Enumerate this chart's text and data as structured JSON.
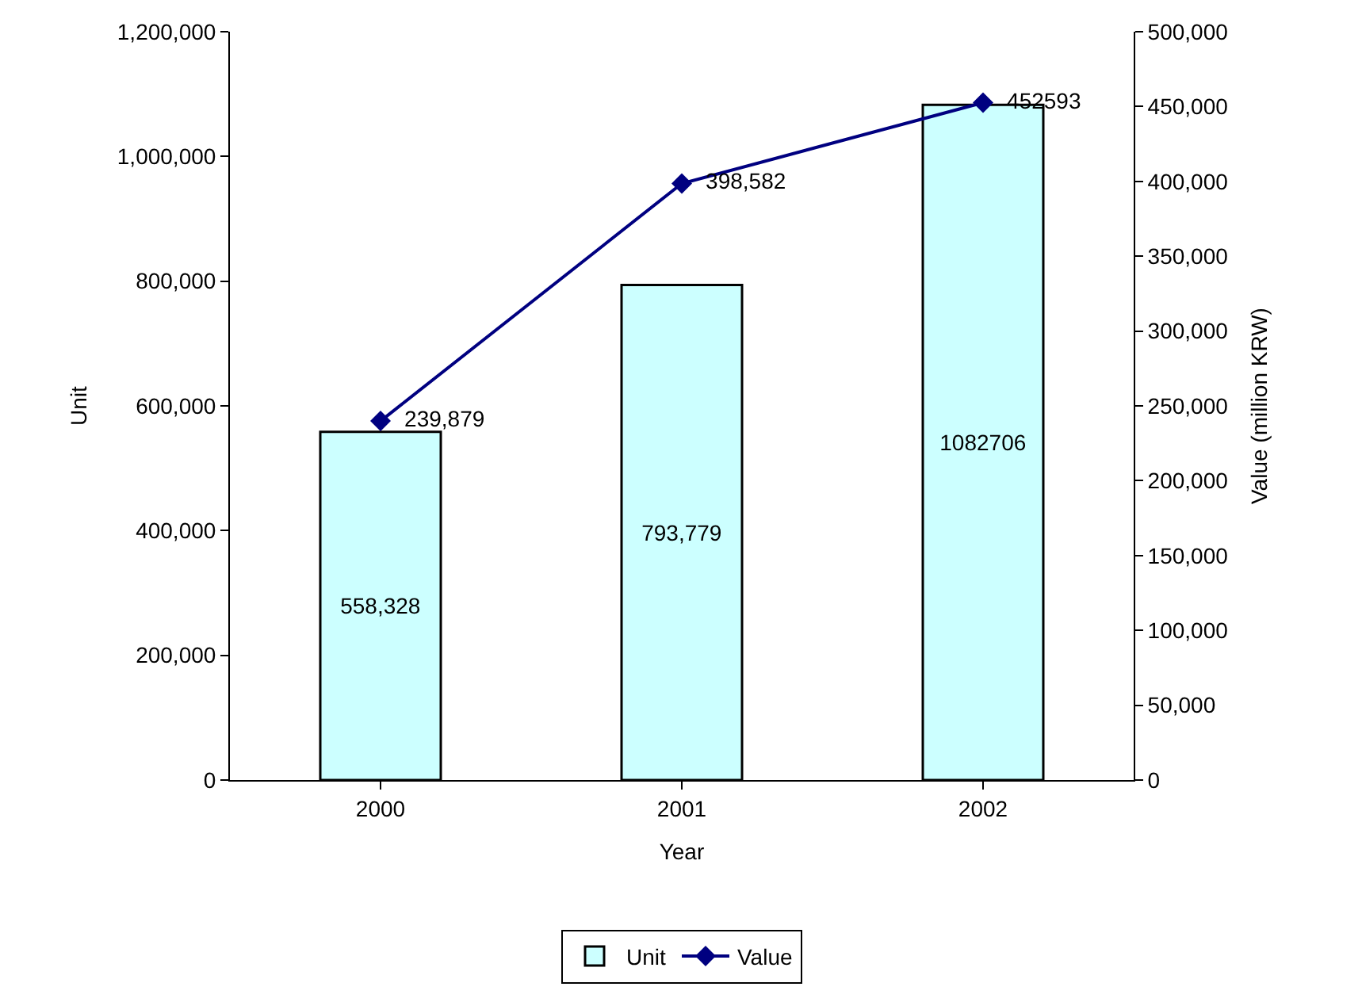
{
  "chart_data": {
    "type": "bar",
    "xlabel": "Year",
    "ylabel": "Unit",
    "y2label": "Value (million KRW)",
    "categories": [
      "2000",
      "2001",
      "2002"
    ],
    "series": [
      {
        "name": "Unit",
        "color": "#ccffff",
        "values": [
          558328,
          793779,
          1082706
        ],
        "value_labels": [
          "558,328",
          "793,779",
          "1082706"
        ]
      },
      {
        "name": "Value",
        "type": "line",
        "axis": "y2",
        "color": "#000080",
        "values": [
          239879,
          398582,
          452593
        ],
        "value_labels": [
          "239,879",
          "398,582",
          "452593"
        ]
      }
    ],
    "ylim": [
      0,
      1200000
    ],
    "yticks": [
      {
        "value": 0,
        "label": "0"
      },
      {
        "value": 200000,
        "label": "200,000"
      },
      {
        "value": 400000,
        "label": "400,000"
      },
      {
        "value": 600000,
        "label": "600,000"
      },
      {
        "value": 800000,
        "label": "800,000"
      },
      {
        "value": 1000000,
        "label": "1,000,000"
      },
      {
        "value": 1200000,
        "label": "1,200,000"
      }
    ],
    "y2lim": [
      0,
      500000
    ],
    "y2ticks": [
      {
        "value": 0,
        "label": "0"
      },
      {
        "value": 50000,
        "label": "50,000"
      },
      {
        "value": 100000,
        "label": "100,000"
      },
      {
        "value": 150000,
        "label": "150,000"
      },
      {
        "value": 200000,
        "label": "200,000"
      },
      {
        "value": 250000,
        "label": "250,000"
      },
      {
        "value": 300000,
        "label": "300,000"
      },
      {
        "value": 350000,
        "label": "350,000"
      },
      {
        "value": 400000,
        "label": "400,000"
      },
      {
        "value": 450000,
        "label": "450,000"
      },
      {
        "value": 500000,
        "label": "500,000"
      }
    ],
    "marker": "diamond",
    "line_style": "solid",
    "legend": "bottom"
  }
}
